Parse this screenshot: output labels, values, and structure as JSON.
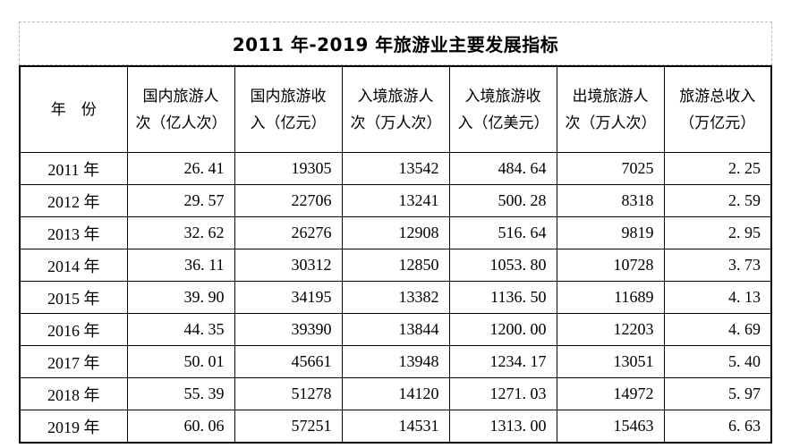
{
  "title": "2011 年-2019 年旅游业主要发展指标",
  "table": {
    "headers": [
      "年　份",
      "国内旅游人次（亿人次）",
      "国内旅游收入（亿元）",
      "入境旅游人次（万人次）",
      "入境旅游收入（亿美元）",
      "出境旅游人次（万人次）",
      "旅游总收入（万亿元）"
    ],
    "rows": [
      [
        "2011 年",
        "26. 41",
        "19305",
        "13542",
        "484. 64",
        "7025",
        "2. 25"
      ],
      [
        "2012 年",
        "29. 57",
        "22706",
        "13241",
        "500. 28",
        "8318",
        "2. 59"
      ],
      [
        "2013 年",
        "32. 62",
        "26276",
        "12908",
        "516. 64",
        "9819",
        "2. 95"
      ],
      [
        "2014 年",
        "36. 11",
        "30312",
        "12850",
        "1053. 80",
        "10728",
        "3. 73"
      ],
      [
        "2015 年",
        "39. 90",
        "34195",
        "13382",
        "1136. 50",
        "11689",
        "4. 13"
      ],
      [
        "2016 年",
        "44. 35",
        "39390",
        "13844",
        "1200. 00",
        "12203",
        "4. 69"
      ],
      [
        "2017 年",
        "50. 01",
        "45661",
        "13948",
        "1234. 17",
        "13051",
        "5. 40"
      ],
      [
        "2018 年",
        "55. 39",
        "51278",
        "14120",
        "1271. 03",
        "14972",
        "5. 97"
      ],
      [
        "2019 年",
        "60. 06",
        "57251",
        "14531",
        "1313. 00",
        "15463",
        "6. 63"
      ]
    ]
  }
}
